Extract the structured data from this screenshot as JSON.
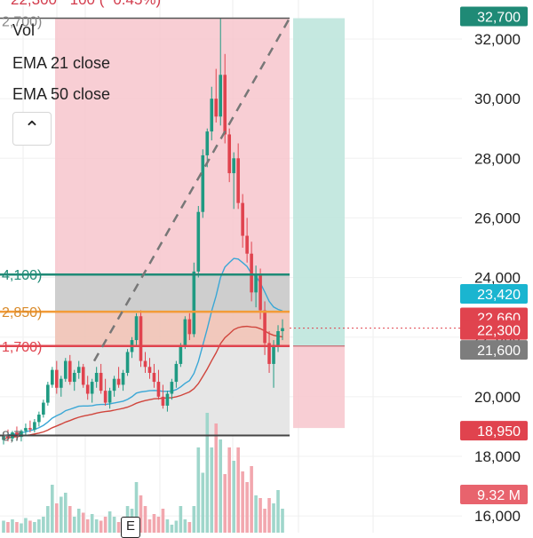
{
  "header": {
    "price_change": "22,300 −100 (−0.45%)",
    "range_top": "2,700)"
  },
  "legend": {
    "vol": "Vol",
    "ema21": "EMA 21 close",
    "ema50": "EMA 50 close"
  },
  "collapse_icon": "chevron-up-icon",
  "levels": {
    "upper": "4,100)",
    "mid": "2,850)",
    "lower": "1,700)",
    "bottom": "8,7",
    "colors": {
      "upper": "#1f8a76",
      "mid": "#f29b38",
      "lower": "#e0434e",
      "bottom": "#444444"
    }
  },
  "price_axis": {
    "ticks": [
      "32,000",
      "30,000",
      "28,000",
      "26,000",
      "24,000",
      "22,000",
      "20,000",
      "18,000",
      "16,000"
    ],
    "ticks_values": [
      32000,
      30000,
      28000,
      26000,
      24000,
      22000,
      20000,
      18000,
      16000
    ]
  },
  "badges": [
    {
      "text": "32,700",
      "value": 32700,
      "color": "#1f8a76"
    },
    {
      "text": "23,420",
      "value": 23420,
      "color": "#1ab5d0"
    },
    {
      "text": "22,660",
      "value": 22660,
      "color": "#e0434e"
    },
    {
      "text": "22,300",
      "value": 22300,
      "color": "#e0434e"
    },
    {
      "text": "21,600",
      "value": 21600,
      "color": "#7d7d7d"
    },
    {
      "text": "18,950",
      "value": 18950,
      "color": "#e0434e"
    },
    {
      "text": "9.32 M",
      "value": null,
      "color": "#e8636d"
    }
  ],
  "event_marker": "E",
  "chart_data": {
    "type": "candlestick",
    "y_range": [
      15850,
      32800
    ],
    "candles": [
      [
        18550,
        18800,
        18400,
        18700
      ],
      [
        18700,
        18900,
        18500,
        18600
      ],
      [
        18600,
        18850,
        18500,
        18800
      ],
      [
        18800,
        19000,
        18600,
        18650
      ],
      [
        18650,
        18900,
        18500,
        18850
      ],
      [
        18850,
        19100,
        18700,
        18950
      ],
      [
        18950,
        19200,
        18800,
        18900
      ],
      [
        18900,
        19250,
        18800,
        19150
      ],
      [
        19150,
        19500,
        19000,
        19400
      ],
      [
        19400,
        19900,
        19300,
        19800
      ],
      [
        19800,
        20500,
        19700,
        20400
      ],
      [
        20400,
        21000,
        20300,
        20900
      ],
      [
        20900,
        21200,
        20100,
        20300
      ],
      [
        20300,
        20700,
        20000,
        20600
      ],
      [
        20600,
        21300,
        20500,
        21200
      ],
      [
        21200,
        21400,
        20400,
        20500
      ],
      [
        20500,
        20900,
        20200,
        20800
      ],
      [
        20800,
        21200,
        20600,
        21000
      ],
      [
        21000,
        21100,
        20300,
        20400
      ],
      [
        20400,
        20700,
        19900,
        20100
      ],
      [
        20100,
        20600,
        19800,
        20500
      ],
      [
        20500,
        21000,
        20300,
        20800
      ],
      [
        20800,
        21100,
        20100,
        20200
      ],
      [
        20200,
        20600,
        19700,
        19800
      ],
      [
        19800,
        20300,
        19600,
        20200
      ],
      [
        20200,
        20700,
        20000,
        20600
      ],
      [
        20600,
        21000,
        20300,
        20400
      ],
      [
        20400,
        20900,
        20200,
        20800
      ],
      [
        20800,
        21600,
        20700,
        21500
      ],
      [
        21500,
        22000,
        21300,
        21900
      ],
      [
        21900,
        22800,
        21700,
        22700
      ],
      [
        22700,
        22900,
        21000,
        21200
      ],
      [
        21200,
        21500,
        20800,
        21000
      ],
      [
        21000,
        21300,
        20600,
        20800
      ],
      [
        20800,
        21100,
        20300,
        20500
      ],
      [
        20500,
        20900,
        19900,
        20000
      ],
      [
        20000,
        20400,
        19600,
        19700
      ],
      [
        19700,
        20200,
        19500,
        20100
      ],
      [
        20100,
        20600,
        19900,
        20500
      ],
      [
        20500,
        21200,
        20300,
        21100
      ],
      [
        21100,
        21800,
        21000,
        21700
      ],
      [
        21700,
        22700,
        21600,
        22600
      ],
      [
        22600,
        22800,
        21900,
        22100
      ],
      [
        22100,
        24500,
        22000,
        24200
      ],
      [
        24200,
        26400,
        24000,
        26200
      ],
      [
        26200,
        28300,
        26000,
        28100
      ],
      [
        28100,
        29000,
        27700,
        28900
      ],
      [
        28900,
        30400,
        28600,
        30000
      ],
      [
        30000,
        31000,
        29200,
        29400
      ],
      [
        29400,
        32700,
        29100,
        30800
      ],
      [
        30800,
        31500,
        28500,
        28800
      ],
      [
        28800,
        29000,
        27200,
        27500
      ],
      [
        27500,
        28200,
        26300,
        28000
      ],
      [
        28000,
        28500,
        26300,
        26500
      ],
      [
        26500,
        26800,
        25000,
        25400
      ],
      [
        25400,
        26000,
        24500,
        24800
      ],
      [
        24800,
        25200,
        23200,
        23500
      ],
      [
        23500,
        24400,
        23000,
        24100
      ],
      [
        24100,
        24300,
        22600,
        22900
      ],
      [
        22900,
        23200,
        21400,
        21800
      ],
      [
        21800,
        22200,
        20800,
        21100
      ],
      [
        21100,
        21900,
        20300,
        21700
      ],
      [
        21700,
        22400,
        21500,
        22200
      ],
      [
        22200,
        22600,
        21900,
        22300
      ]
    ],
    "ema21": [
      18700,
      18720,
      18740,
      18760,
      18790,
      18820,
      18860,
      18900,
      18960,
      19040,
      19150,
      19280,
      19360,
      19430,
      19530,
      19580,
      19630,
      19680,
      19690,
      19690,
      19700,
      19730,
      19740,
      19740,
      19760,
      19790,
      19820,
      19850,
      19910,
      20000,
      20120,
      20160,
      20180,
      20200,
      20210,
      20200,
      20180,
      20180,
      20190,
      20240,
      20330,
      20450,
      20540,
      20780,
      21180,
      21730,
      22280,
      22880,
      23380,
      24000,
      24350,
      24500,
      24640,
      24620,
      24500,
      24370,
      24130,
      24040,
      23810,
      23510,
      23200,
      23010,
      22930,
      22880
    ],
    "ema50": [
      18600,
      18620,
      18640,
      18660,
      18680,
      18700,
      18720,
      18750,
      18780,
      18820,
      18880,
      18960,
      19020,
      19080,
      19150,
      19200,
      19260,
      19310,
      19350,
      19380,
      19410,
      19450,
      19480,
      19500,
      19520,
      19550,
      19580,
      19610,
      19650,
      19710,
      19780,
      19830,
      19870,
      19900,
      19930,
      19940,
      19950,
      19960,
      19970,
      20000,
      20040,
      20100,
      20160,
      20270,
      20440,
      20680,
      20930,
      21210,
      21470,
      21780,
      21980,
      22110,
      22250,
      22320,
      22350,
      22360,
      22340,
      22330,
      22280,
      22210,
      22120,
      22060,
      22030,
      22010
    ],
    "volume": [
      0.09,
      0.08,
      0.1,
      0.08,
      0.07,
      0.11,
      0.09,
      0.08,
      0.1,
      0.12,
      0.2,
      0.36,
      0.22,
      0.27,
      0.3,
      0.2,
      0.12,
      0.18,
      0.15,
      0.1,
      0.14,
      0.1,
      0.09,
      0.12,
      0.16,
      0.12,
      0.08,
      0.06,
      0.2,
      0.18,
      0.38,
      0.28,
      0.2,
      0.1,
      0.14,
      0.12,
      0.18,
      0.1,
      0.06,
      0.09,
      0.2,
      0.1,
      0.08,
      0.2,
      0.64,
      0.45,
      0.9,
      0.64,
      0.82,
      0.7,
      0.44,
      0.64,
      0.54,
      0.64,
      0.46,
      0.38,
      0.5,
      0.28,
      0.26,
      0.18,
      0.26,
      0.22,
      0.32,
      0.18
    ],
    "volume_badge": "9.32 M",
    "levels": {
      "upper": 24100,
      "mid": 22850,
      "lower": 21700,
      "bottom": 18700,
      "top": 32700,
      "target_low": 18950
    },
    "y_ticks": [
      32000,
      30000,
      28000,
      26000,
      24000,
      22000,
      20000,
      18000,
      16000
    ]
  }
}
